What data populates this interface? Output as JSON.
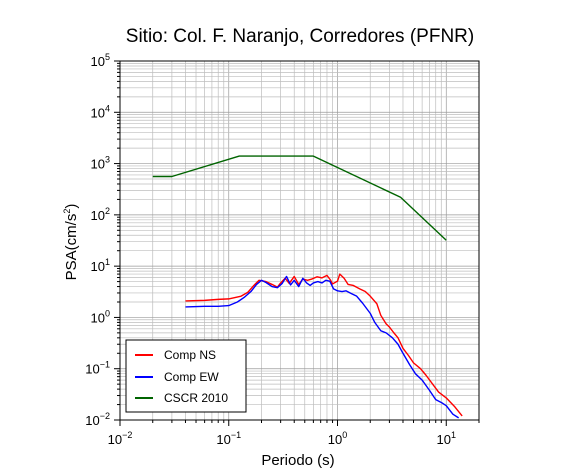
{
  "chart_data": {
    "type": "line",
    "title": "Sitio: Col. F. Naranjo, Corredores (PFNR)",
    "xlabel": "Periodo (s)",
    "ylabel_prefix": "PSA(cm/s",
    "ylabel_exp": "2",
    "ylabel_suffix": ")",
    "x_scale": "log",
    "y_scale": "log",
    "xlim": [
      0.01,
      20
    ],
    "ylim": [
      0.01,
      100000
    ],
    "grid": true,
    "legend_position": "bottom-left",
    "x_ticks": [
      {
        "base": "10",
        "exp": "−2",
        "value": 0.01
      },
      {
        "base": "10",
        "exp": "−1",
        "value": 0.1
      },
      {
        "base": "10",
        "exp": "0",
        "value": 1
      },
      {
        "base": "10",
        "exp": "1",
        "value": 10
      }
    ],
    "y_ticks": [
      {
        "base": "10",
        "exp": "−2",
        "value": 0.01
      },
      {
        "base": "10",
        "exp": "−1",
        "value": 0.1
      },
      {
        "base": "10",
        "exp": "0",
        "value": 1
      },
      {
        "base": "10",
        "exp": "1",
        "value": 10
      },
      {
        "base": "10",
        "exp": "2",
        "value": 100
      },
      {
        "base": "10",
        "exp": "3",
        "value": 1000
      },
      {
        "base": "10",
        "exp": "4",
        "value": 10000
      },
      {
        "base": "10",
        "exp": "5",
        "value": 100000
      }
    ],
    "series": [
      {
        "name": "Comp NS",
        "color": "#ff0000",
        "points": [
          [
            0.04,
            2.1
          ],
          [
            0.06,
            2.15
          ],
          [
            0.08,
            2.25
          ],
          [
            0.1,
            2.3
          ],
          [
            0.13,
            2.6
          ],
          [
            0.15,
            3.1
          ],
          [
            0.17,
            4.2
          ],
          [
            0.19,
            5.3
          ],
          [
            0.22,
            5.0
          ],
          [
            0.25,
            4.4
          ],
          [
            0.28,
            3.9
          ],
          [
            0.3,
            4.7
          ],
          [
            0.33,
            5.8
          ],
          [
            0.36,
            4.6
          ],
          [
            0.4,
            6.3
          ],
          [
            0.44,
            4.4
          ],
          [
            0.48,
            5.6
          ],
          [
            0.53,
            5.3
          ],
          [
            0.58,
            5.6
          ],
          [
            0.65,
            6.2
          ],
          [
            0.72,
            5.9
          ],
          [
            0.8,
            6.6
          ],
          [
            0.86,
            5.4
          ],
          [
            0.9,
            4.5
          ],
          [
            1.0,
            5.1
          ],
          [
            1.05,
            7.0
          ],
          [
            1.15,
            5.8
          ],
          [
            1.25,
            4.4
          ],
          [
            1.4,
            4.2
          ],
          [
            1.6,
            3.6
          ],
          [
            1.8,
            3.2
          ],
          [
            2.0,
            2.6
          ],
          [
            2.3,
            1.85
          ],
          [
            2.5,
            1.1
          ],
          [
            2.8,
            0.75
          ],
          [
            3.0,
            0.65
          ],
          [
            3.3,
            0.5
          ],
          [
            3.6,
            0.4
          ],
          [
            4.0,
            0.25
          ],
          [
            4.5,
            0.18
          ],
          [
            5.0,
            0.13
          ],
          [
            5.8,
            0.1
          ],
          [
            6.5,
            0.075
          ],
          [
            7.5,
            0.05
          ],
          [
            8.5,
            0.035
          ],
          [
            10,
            0.027
          ],
          [
            12,
            0.018
          ],
          [
            14,
            0.012
          ]
        ]
      },
      {
        "name": "Comp EW",
        "color": "#0000ff",
        "points": [
          [
            0.04,
            1.6
          ],
          [
            0.06,
            1.65
          ],
          [
            0.08,
            1.65
          ],
          [
            0.1,
            1.7
          ],
          [
            0.12,
            2.0
          ],
          [
            0.14,
            2.5
          ],
          [
            0.16,
            3.2
          ],
          [
            0.18,
            4.4
          ],
          [
            0.2,
            5.3
          ],
          [
            0.22,
            4.8
          ],
          [
            0.25,
            4.0
          ],
          [
            0.28,
            3.8
          ],
          [
            0.31,
            4.6
          ],
          [
            0.34,
            6.3
          ],
          [
            0.37,
            4.3
          ],
          [
            0.4,
            5.3
          ],
          [
            0.44,
            4.0
          ],
          [
            0.48,
            5.8
          ],
          [
            0.52,
            4.7
          ],
          [
            0.56,
            4.2
          ],
          [
            0.6,
            4.7
          ],
          [
            0.66,
            5.0
          ],
          [
            0.72,
            4.7
          ],
          [
            0.78,
            5.3
          ],
          [
            0.85,
            5.1
          ],
          [
            0.92,
            3.6
          ],
          [
            1.0,
            3.3
          ],
          [
            1.1,
            3.2
          ],
          [
            1.2,
            3.3
          ],
          [
            1.35,
            2.9
          ],
          [
            1.5,
            2.6
          ],
          [
            1.7,
            1.9
          ],
          [
            2.0,
            1.2
          ],
          [
            2.2,
            0.8
          ],
          [
            2.5,
            0.55
          ],
          [
            2.8,
            0.5
          ],
          [
            3.2,
            0.4
          ],
          [
            3.6,
            0.3
          ],
          [
            4.0,
            0.2
          ],
          [
            4.6,
            0.12
          ],
          [
            5.2,
            0.08
          ],
          [
            6.0,
            0.06
          ],
          [
            7.0,
            0.038
          ],
          [
            8.0,
            0.025
          ],
          [
            9.0,
            0.022
          ],
          [
            10,
            0.019
          ],
          [
            11.5,
            0.013
          ],
          [
            13,
            0.011
          ]
        ]
      },
      {
        "name": "CSCR 2010",
        "color": "#006400",
        "points": [
          [
            0.02,
            560
          ],
          [
            0.03,
            560
          ],
          [
            0.125,
            1400
          ],
          [
            0.6,
            1400
          ],
          [
            3.8,
            220
          ],
          [
            10,
            32
          ]
        ]
      }
    ]
  }
}
